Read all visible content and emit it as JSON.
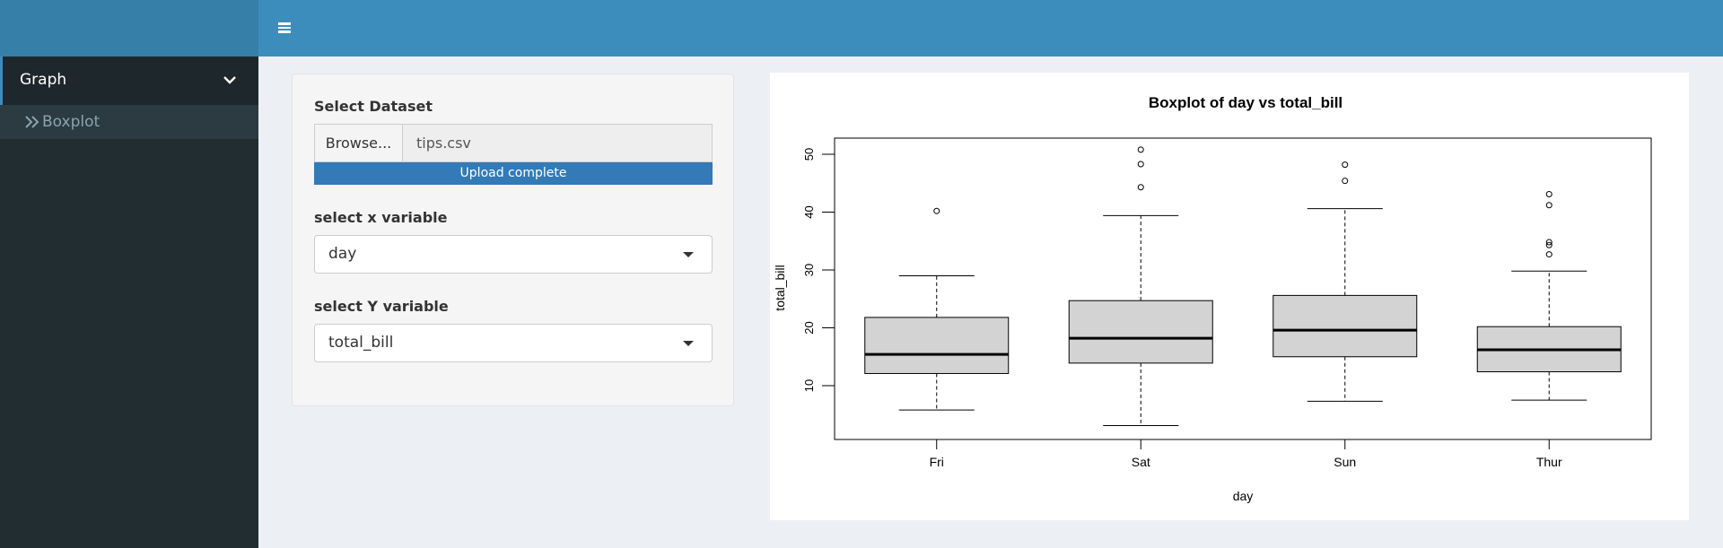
{
  "header": {
    "menu_icon": "hamburger-icon"
  },
  "sidebar": {
    "items": [
      {
        "label": "Graph",
        "icon": "chevron-down-icon",
        "expanded": true,
        "children": [
          {
            "label": "Boxplot",
            "icon": "double-chevron-right-icon"
          }
        ]
      }
    ]
  },
  "inputs": {
    "dataset_label": "Select Dataset",
    "browse_label": "Browse...",
    "file_name": "tips.csv",
    "upload_status": "Upload complete",
    "x_label": "select x variable",
    "x_value": "day",
    "y_label": "select Y variable",
    "y_value": "total_bill"
  },
  "colors": {
    "brand": "#3c8dbc",
    "brand_dark": "#367fa9",
    "sidebar": "#222d32",
    "progress": "#337ab7",
    "box_fill": "#d3d3d3"
  },
  "chart_data": {
    "type": "boxplot",
    "title": "Boxplot of day  vs  total_bill",
    "xlabel": "day",
    "ylabel": "total_bill",
    "ylim": [
      0,
      52
    ],
    "yticks": [
      10,
      20,
      30,
      40,
      50
    ],
    "categories": [
      "Fri",
      "Sat",
      "Sun",
      "Thur"
    ],
    "boxes": [
      {
        "name": "Fri",
        "whisker_low": 5.8,
        "q1": 12.1,
        "median": 15.4,
        "q3": 21.8,
        "whisker_high": 29.0,
        "outliers": [
          40.2
        ]
      },
      {
        "name": "Sat",
        "whisker_low": 3.1,
        "q1": 13.9,
        "median": 18.2,
        "q3": 24.7,
        "whisker_high": 39.4,
        "outliers": [
          44.3,
          48.3,
          50.8
        ]
      },
      {
        "name": "Sun",
        "whisker_low": 7.3,
        "q1": 15.0,
        "median": 19.6,
        "q3": 25.6,
        "whisker_high": 40.6,
        "outliers": [
          45.4,
          48.2
        ]
      },
      {
        "name": "Thur",
        "whisker_low": 7.5,
        "q1": 12.4,
        "median": 16.2,
        "q3": 20.2,
        "whisker_high": 29.8,
        "outliers": [
          32.7,
          34.3,
          34.8,
          41.2,
          43.1
        ]
      }
    ]
  }
}
